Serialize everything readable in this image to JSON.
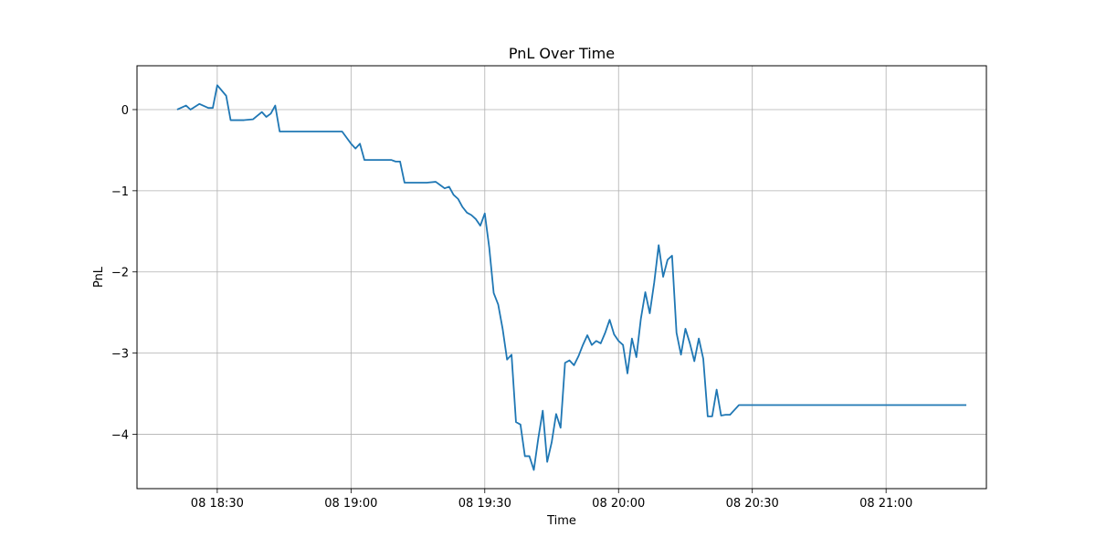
{
  "chart_data": {
    "type": "line",
    "title": "PnL Over Time",
    "xlabel": "Time",
    "ylabel": "PnL",
    "grid": true,
    "legend": "none",
    "x_ticks": [
      "08 18:30",
      "08 19:00",
      "08 19:30",
      "08 20:00",
      "08 20:30",
      "08 21:00"
    ],
    "y_ticks": [
      "−4",
      "−3",
      "−2",
      "−1",
      "0"
    ],
    "x_tick_values": [
      30,
      60,
      90,
      120,
      150,
      180
    ],
    "y_tick_values": [
      -4,
      -3,
      -2,
      -1,
      0
    ],
    "xlim_minutes_after_18_00": [
      12.0,
      202.5
    ],
    "ylim": [
      -4.67,
      0.54
    ],
    "series": [
      {
        "color": "#1f77b4",
        "x_minutes_after_18_00": [
          21,
          23,
          24,
          26,
          28,
          29,
          30,
          32,
          33,
          34,
          36,
          38,
          40,
          41,
          42,
          43,
          44,
          45,
          47,
          50,
          52,
          55,
          58,
          60,
          61,
          62,
          63,
          65,
          67,
          69,
          70,
          71,
          72,
          73,
          75,
          77,
          79,
          80,
          81,
          82,
          83,
          84,
          85,
          86,
          87,
          88,
          89,
          90,
          91,
          92,
          93,
          94,
          95,
          96,
          97,
          98,
          99,
          100,
          101,
          102,
          103,
          104,
          105,
          106,
          107,
          108,
          109,
          110,
          111,
          112,
          113,
          114,
          115,
          116,
          117,
          118,
          119,
          120,
          121,
          122,
          123,
          124,
          125,
          126,
          127,
          128,
          129,
          130,
          131,
          132,
          133,
          134,
          135,
          136,
          137,
          138,
          139,
          140,
          141,
          142,
          143,
          144,
          145,
          146,
          147,
          148,
          149,
          150,
          160,
          170,
          180,
          190,
          198
        ],
        "y": [
          0.0,
          0.05,
          0.0,
          0.07,
          0.02,
          0.02,
          0.3,
          0.17,
          -0.13,
          -0.13,
          -0.13,
          -0.12,
          -0.03,
          -0.09,
          -0.05,
          0.05,
          -0.27,
          -0.27,
          -0.27,
          -0.27,
          -0.27,
          -0.27,
          -0.27,
          -0.42,
          -0.48,
          -0.42,
          -0.62,
          -0.62,
          -0.62,
          -0.62,
          -0.64,
          -0.64,
          -0.9,
          -0.9,
          -0.9,
          -0.9,
          -0.89,
          -0.93,
          -0.97,
          -0.95,
          -1.05,
          -1.1,
          -1.2,
          -1.27,
          -1.3,
          -1.35,
          -1.43,
          -1.28,
          -1.7,
          -2.26,
          -2.4,
          -2.7,
          -3.08,
          -3.02,
          -3.85,
          -3.88,
          -4.27,
          -4.27,
          -4.44,
          -4.05,
          -3.71,
          -4.34,
          -4.1,
          -3.75,
          -3.92,
          -3.12,
          -3.09,
          -3.15,
          -3.04,
          -2.9,
          -2.78,
          -2.9,
          -2.85,
          -2.88,
          -2.75,
          -2.59,
          -2.77,
          -2.85,
          -2.9,
          -3.25,
          -2.82,
          -3.05,
          -2.58,
          -2.25,
          -2.51,
          -2.13,
          -1.67,
          -2.06,
          -1.85,
          -1.8,
          -2.75,
          -3.02,
          -2.7,
          -2.88,
          -3.1,
          -2.82,
          -3.07,
          -3.78,
          -3.78,
          -3.45,
          -3.77,
          -3.76,
          -3.76,
          -3.7,
          -3.64,
          -3.64,
          -3.64,
          -3.64,
          -3.64,
          -3.64,
          -3.64,
          -3.64,
          -3.64
        ]
      }
    ]
  }
}
